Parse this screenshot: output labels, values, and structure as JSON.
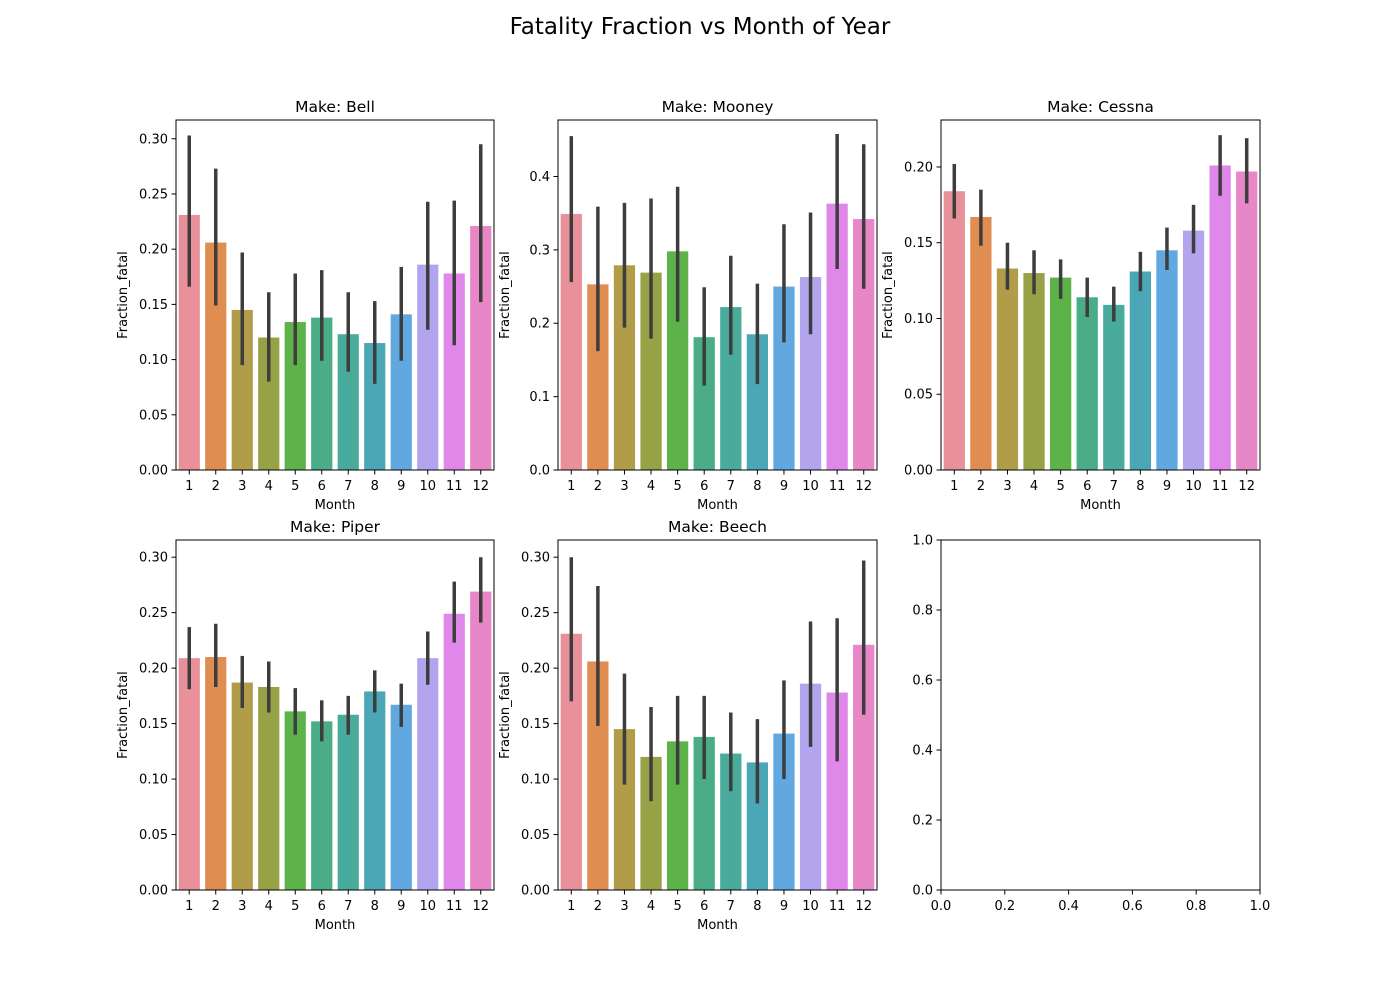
{
  "figure": {
    "title": "Fatality Fraction vs Month of Year"
  },
  "chart_data": [
    {
      "type": "bar",
      "title": "Make: Bell",
      "xlabel": "Month",
      "ylabel": "Fraction_fatal",
      "categories": [
        "1",
        "2",
        "3",
        "4",
        "5",
        "6",
        "7",
        "8",
        "9",
        "10",
        "11",
        "12"
      ],
      "values": [
        0.231,
        0.206,
        0.145,
        0.12,
        0.134,
        0.138,
        0.123,
        0.115,
        0.141,
        0.186,
        0.178,
        0.221
      ],
      "ci_low": [
        0.166,
        0.149,
        0.095,
        0.08,
        0.095,
        0.099,
        0.089,
        0.078,
        0.099,
        0.127,
        0.113,
        0.152
      ],
      "ci_high": [
        0.303,
        0.273,
        0.197,
        0.161,
        0.178,
        0.181,
        0.161,
        0.153,
        0.184,
        0.243,
        0.244,
        0.295
      ],
      "ylim": [
        0,
        0.317
      ],
      "yticks": [
        0.0,
        0.05,
        0.1,
        0.15,
        0.2,
        0.25,
        0.3
      ],
      "ytick_labels": [
        "0.00",
        "0.05",
        "0.10",
        "0.15",
        "0.20",
        "0.25",
        "0.30"
      ]
    },
    {
      "type": "bar",
      "title": "Make: Mooney",
      "xlabel": "Month",
      "ylabel": "Fraction_fatal",
      "categories": [
        "1",
        "2",
        "3",
        "4",
        "5",
        "6",
        "7",
        "8",
        "9",
        "10",
        "11",
        "12"
      ],
      "values": [
        0.349,
        0.253,
        0.279,
        0.269,
        0.298,
        0.181,
        0.222,
        0.185,
        0.25,
        0.263,
        0.363,
        0.342
      ],
      "ci_low": [
        0.256,
        0.162,
        0.194,
        0.179,
        0.202,
        0.115,
        0.157,
        0.117,
        0.174,
        0.185,
        0.274,
        0.247
      ],
      "ci_high": [
        0.455,
        0.359,
        0.364,
        0.37,
        0.386,
        0.249,
        0.292,
        0.254,
        0.335,
        0.351,
        0.458,
        0.444
      ],
      "ylim": [
        0,
        0.477
      ],
      "yticks": [
        0.0,
        0.1,
        0.2,
        0.3,
        0.4
      ],
      "ytick_labels": [
        "0.0",
        "0.1",
        "0.2",
        "0.3",
        "0.4"
      ]
    },
    {
      "type": "bar",
      "title": "Make: Cessna",
      "xlabel": "Month",
      "ylabel": "Fraction_fatal",
      "categories": [
        "1",
        "2",
        "3",
        "4",
        "5",
        "6",
        "7",
        "8",
        "9",
        "10",
        "11",
        "12"
      ],
      "values": [
        0.184,
        0.167,
        0.133,
        0.13,
        0.127,
        0.114,
        0.109,
        0.131,
        0.145,
        0.158,
        0.201,
        0.197
      ],
      "ci_low": [
        0.166,
        0.148,
        0.119,
        0.116,
        0.113,
        0.101,
        0.098,
        0.118,
        0.132,
        0.143,
        0.181,
        0.176
      ],
      "ci_high": [
        0.202,
        0.185,
        0.15,
        0.145,
        0.139,
        0.127,
        0.121,
        0.144,
        0.16,
        0.175,
        0.221,
        0.219
      ],
      "ylim": [
        0,
        0.231
      ],
      "yticks": [
        0.0,
        0.05,
        0.1,
        0.15,
        0.2
      ],
      "ytick_labels": [
        "0.00",
        "0.05",
        "0.10",
        "0.15",
        "0.20"
      ]
    },
    {
      "type": "bar",
      "title": "Make: Piper",
      "xlabel": "Month",
      "ylabel": "Fraction_fatal",
      "categories": [
        "1",
        "2",
        "3",
        "4",
        "5",
        "6",
        "7",
        "8",
        "9",
        "10",
        "11",
        "12"
      ],
      "values": [
        0.209,
        0.21,
        0.187,
        0.183,
        0.161,
        0.152,
        0.158,
        0.179,
        0.167,
        0.209,
        0.249,
        0.269
      ],
      "ci_low": [
        0.181,
        0.183,
        0.164,
        0.16,
        0.14,
        0.134,
        0.14,
        0.16,
        0.147,
        0.185,
        0.223,
        0.241
      ],
      "ci_high": [
        0.237,
        0.24,
        0.211,
        0.206,
        0.182,
        0.171,
        0.175,
        0.198,
        0.186,
        0.233,
        0.278,
        0.3
      ],
      "ylim": [
        0,
        0.3155
      ],
      "yticks": [
        0.0,
        0.05,
        0.1,
        0.15,
        0.2,
        0.25,
        0.3
      ],
      "ytick_labels": [
        "0.00",
        "0.05",
        "0.10",
        "0.15",
        "0.20",
        "0.25",
        "0.30"
      ]
    },
    {
      "type": "bar",
      "title": "Make: Beech",
      "xlabel": "Month",
      "ylabel": "Fraction_fatal",
      "categories": [
        "1",
        "2",
        "3",
        "4",
        "5",
        "6",
        "7",
        "8",
        "9",
        "10",
        "11",
        "12"
      ],
      "values": [
        0.231,
        0.206,
        0.145,
        0.12,
        0.134,
        0.138,
        0.123,
        0.115,
        0.141,
        0.186,
        0.178,
        0.221
      ],
      "ci_low": [
        0.17,
        0.148,
        0.095,
        0.08,
        0.095,
        0.1,
        0.089,
        0.078,
        0.1,
        0.129,
        0.116,
        0.158
      ],
      "ci_high": [
        0.3,
        0.274,
        0.195,
        0.165,
        0.175,
        0.175,
        0.16,
        0.154,
        0.189,
        0.242,
        0.245,
        0.297
      ],
      "ylim": [
        0,
        0.3155
      ],
      "yticks": [
        0.0,
        0.05,
        0.1,
        0.15,
        0.2,
        0.25,
        0.3
      ],
      "ytick_labels": [
        "0.00",
        "0.05",
        "0.10",
        "0.15",
        "0.20",
        "0.25",
        "0.30"
      ]
    },
    {
      "type": "bar",
      "title": "",
      "xlabel": "",
      "ylabel": "",
      "categories": [],
      "values": [],
      "xlim": [
        0,
        1
      ],
      "ylim": [
        0,
        1
      ],
      "xticks": [
        0.0,
        0.2,
        0.4,
        0.6,
        0.8,
        1.0
      ],
      "xtick_labels": [
        "0.0",
        "0.2",
        "0.4",
        "0.6",
        "0.8",
        "1.0"
      ],
      "yticks": [
        0.0,
        0.2,
        0.4,
        0.6,
        0.8,
        1.0
      ],
      "ytick_labels": [
        "0.0",
        "0.2",
        "0.4",
        "0.6",
        "0.8",
        "1.0"
      ]
    }
  ],
  "colors": {
    "palette": [
      "#e8919a",
      "#df8d50",
      "#b19c4a",
      "#97a246",
      "#5db249",
      "#4aad88",
      "#49ab9c",
      "#4ba7b5",
      "#62a8e0",
      "#b2a4ed",
      "#df88e9",
      "#e887c7"
    ],
    "error_bar": "#3d3d3d",
    "axis": "#000000"
  }
}
